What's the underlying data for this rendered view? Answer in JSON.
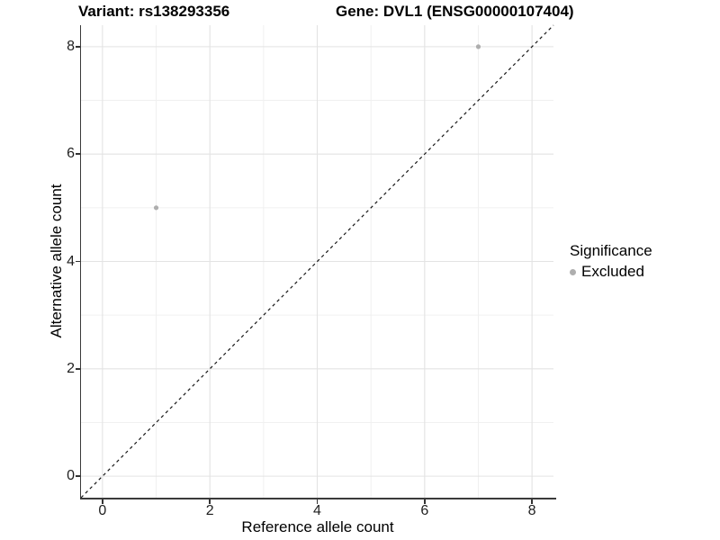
{
  "chart_data": {
    "type": "scatter",
    "title_left": "Variant: rs138293356",
    "title_right": "Gene: DVL1 (ENSG00000107404)",
    "xlabel": "Reference allele count",
    "ylabel": "Alternative allele count",
    "xlim": [
      -0.4,
      8.4
    ],
    "ylim": [
      -0.4,
      8.4
    ],
    "x_ticks": [
      0,
      2,
      4,
      6,
      8
    ],
    "y_ticks": [
      0,
      2,
      4,
      6,
      8
    ],
    "minor_ticks": [
      1,
      3,
      5,
      7
    ],
    "grid": true,
    "points": [
      {
        "x": 1,
        "y": 5,
        "significance": "Excluded"
      },
      {
        "x": 7,
        "y": 8,
        "significance": "Excluded"
      }
    ],
    "identity_line": {
      "style": "dashed",
      "from": [
        -0.4,
        -0.4
      ],
      "to": [
        8.4,
        8.4
      ],
      "color": "#161616"
    },
    "point_color": "#aeaeae",
    "colors": {
      "grid_major": "#e3e3e3",
      "grid_minor": "#f0f0f0",
      "spine": "#3a3a3a",
      "background": "#ffffff"
    },
    "legend": {
      "position": "right",
      "title": "Significance",
      "items": [
        {
          "label": "Excluded",
          "color": "#aeaeae"
        }
      ]
    }
  }
}
